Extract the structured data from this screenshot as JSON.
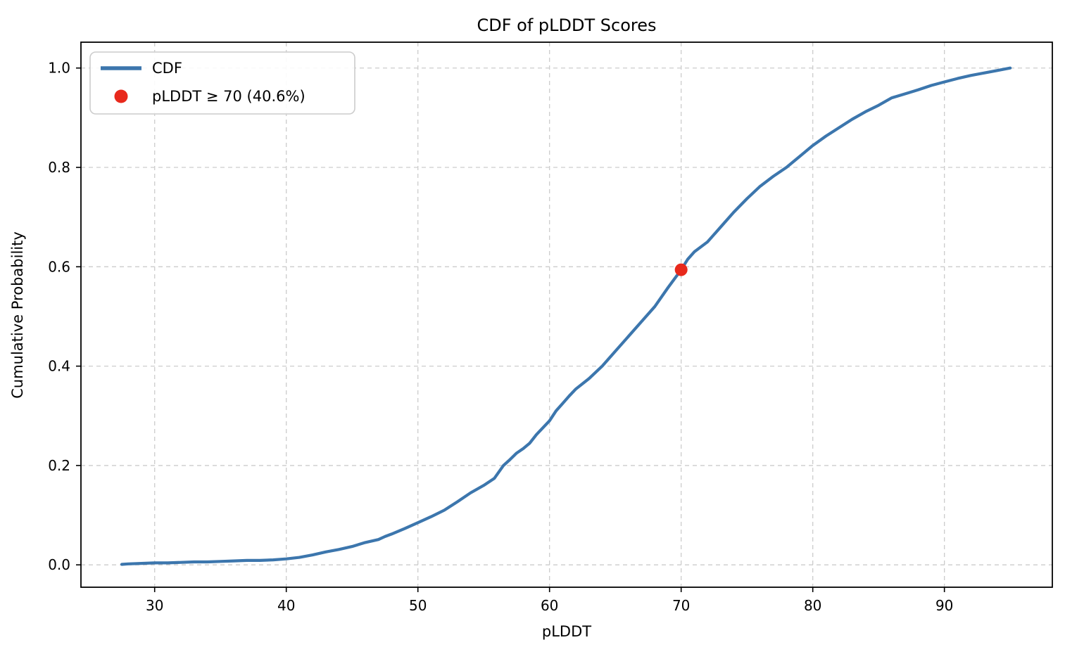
{
  "chart_data": {
    "type": "line",
    "title": "CDF of pLDDT Scores",
    "xlabel": "pLDDT",
    "ylabel": "Cumulative Probability",
    "xlim": [
      24.4,
      98.2
    ],
    "ylim": [
      -0.045,
      1.052
    ],
    "x_ticks": [
      30,
      40,
      50,
      60,
      70,
      80,
      90
    ],
    "y_ticks": [
      0.0,
      0.2,
      0.4,
      0.6,
      0.8,
      1.0
    ],
    "y_tick_labels": [
      "0.0",
      "0.2",
      "0.4",
      "0.6",
      "0.8",
      "1.0"
    ],
    "grid": true,
    "grid_style": "dashed",
    "legend_position": "upper-left",
    "colors": {
      "line": "#3c76ad",
      "marker": "#e8291c",
      "grid": "#cccccc",
      "spine": "#000000",
      "legend_border": "#cccccc",
      "legend_bg": "#ffffff"
    },
    "series": [
      {
        "name": "CDF",
        "points": [
          [
            27.5,
            0.001
          ],
          [
            28,
            0.002
          ],
          [
            29,
            0.003
          ],
          [
            30,
            0.004
          ],
          [
            31,
            0.004
          ],
          [
            32,
            0.005
          ],
          [
            33,
            0.006
          ],
          [
            34,
            0.006
          ],
          [
            35,
            0.007
          ],
          [
            36,
            0.008
          ],
          [
            37,
            0.009
          ],
          [
            38,
            0.009
          ],
          [
            39,
            0.01
          ],
          [
            40,
            0.012
          ],
          [
            41,
            0.015
          ],
          [
            42,
            0.02
          ],
          [
            43,
            0.026
          ],
          [
            44,
            0.031
          ],
          [
            45,
            0.037
          ],
          [
            46,
            0.045
          ],
          [
            47,
            0.051
          ],
          [
            47.5,
            0.057
          ],
          [
            48,
            0.062
          ],
          [
            49,
            0.073
          ],
          [
            50,
            0.085
          ],
          [
            51,
            0.097
          ],
          [
            52,
            0.11
          ],
          [
            53,
            0.127
          ],
          [
            54,
            0.145
          ],
          [
            55,
            0.16
          ],
          [
            55.8,
            0.174
          ],
          [
            56.5,
            0.2
          ],
          [
            57,
            0.212
          ],
          [
            57.5,
            0.225
          ],
          [
            58,
            0.234
          ],
          [
            58.5,
            0.245
          ],
          [
            59,
            0.262
          ],
          [
            60,
            0.29
          ],
          [
            60.5,
            0.31
          ],
          [
            61,
            0.325
          ],
          [
            61.5,
            0.34
          ],
          [
            62,
            0.354
          ],
          [
            63,
            0.375
          ],
          [
            64,
            0.4
          ],
          [
            65,
            0.43
          ],
          [
            66,
            0.46
          ],
          [
            67,
            0.49
          ],
          [
            68,
            0.52
          ],
          [
            69,
            0.558
          ],
          [
            70,
            0.594
          ],
          [
            70.5,
            0.615
          ],
          [
            71,
            0.63
          ],
          [
            72,
            0.65
          ],
          [
            73,
            0.68
          ],
          [
            74,
            0.71
          ],
          [
            75,
            0.737
          ],
          [
            76,
            0.762
          ],
          [
            77,
            0.782
          ],
          [
            78,
            0.8
          ],
          [
            79,
            0.822
          ],
          [
            80,
            0.844
          ],
          [
            81,
            0.863
          ],
          [
            82,
            0.88
          ],
          [
            83,
            0.897
          ],
          [
            84,
            0.912
          ],
          [
            85,
            0.925
          ],
          [
            86,
            0.94
          ],
          [
            87,
            0.948
          ],
          [
            88,
            0.956
          ],
          [
            89,
            0.965
          ],
          [
            90,
            0.972
          ],
          [
            91,
            0.979
          ],
          [
            92,
            0.985
          ],
          [
            93,
            0.99
          ],
          [
            94,
            0.995
          ],
          [
            95,
            1.0
          ]
        ]
      }
    ],
    "threshold_marker": {
      "x": 70,
      "y": 0.594,
      "label": "pLDDT ≥ 70 (40.6%)"
    },
    "legend": [
      {
        "label": "CDF",
        "swatch": "line"
      },
      {
        "label": "pLDDT ≥ 70 (40.6%)",
        "swatch": "dot"
      }
    ]
  }
}
